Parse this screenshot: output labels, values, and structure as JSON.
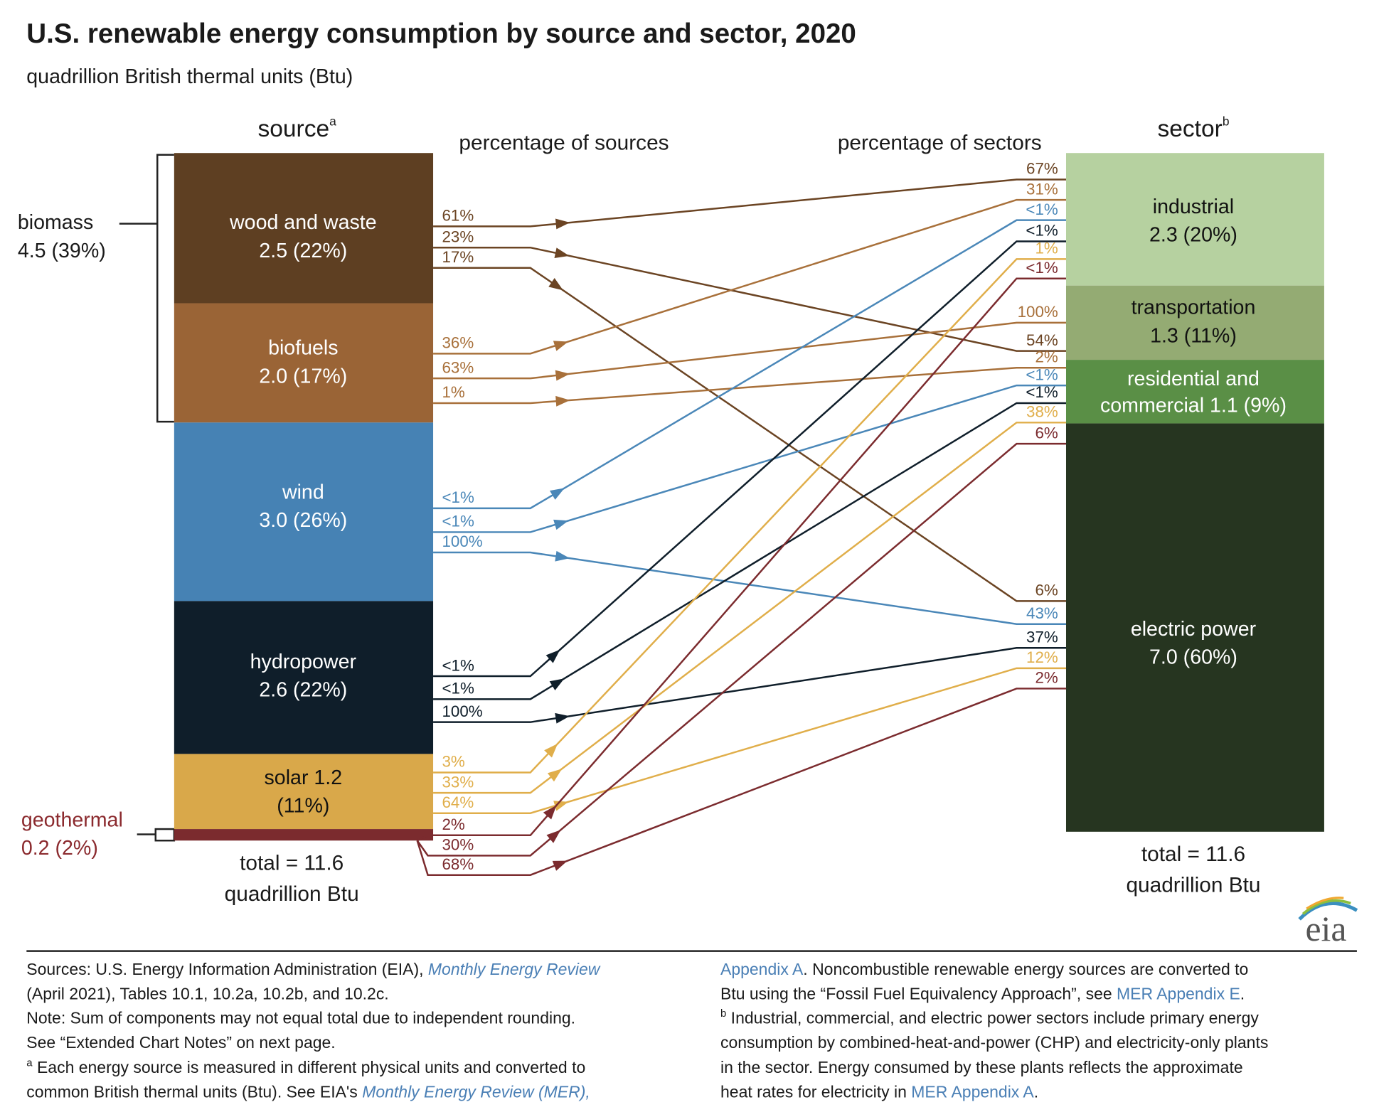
{
  "title": "U.S. renewable energy consumption by source and sector, 2020",
  "subtitle": "quadrillion British thermal units (Btu)",
  "source_header": {
    "text": "source",
    "sup": "a"
  },
  "sector_header": {
    "text": "sector",
    "sup": "b"
  },
  "pct_sources_header": "percentage of sources",
  "pct_sectors_header": "percentage of sectors",
  "biomass": [
    "biomass",
    "4.5 (39%)"
  ],
  "sources": [
    [
      "wood and waste",
      "2.5 (22%)"
    ],
    [
      "biofuels",
      "2.0 (17%)"
    ],
    [
      "wind",
      "3.0 (26%)"
    ],
    [
      "hydropower",
      "2.6 (22%)"
    ],
    [
      "solar 1.2",
      "(11%)"
    ],
    [
      "geothermal",
      "0.2 (2%)"
    ]
  ],
  "sectors": [
    [
      "industrial",
      "2.3 (20%)"
    ],
    [
      "transportation",
      "1.3  (11%)"
    ],
    [
      "residential and",
      "commercial 1.1 (9%)"
    ],
    [
      "electric power",
      "7.0  (60%)"
    ]
  ],
  "flows": [
    {
      "source_pct": "61%",
      "sector_pct": "67%"
    },
    {
      "source_pct": "23%",
      "sector_pct": "54%"
    },
    {
      "source_pct": "17%",
      "sector_pct": "6%"
    },
    {
      "source_pct": "36%",
      "sector_pct": "31%"
    },
    {
      "source_pct": "63%",
      "sector_pct": "100%"
    },
    {
      "source_pct": "1%",
      "sector_pct": "2%"
    },
    {
      "source_pct": "<1%",
      "sector_pct": "<1%"
    },
    {
      "source_pct": "<1%",
      "sector_pct": "<1%"
    },
    {
      "source_pct": "100%",
      "sector_pct": "43%"
    },
    {
      "source_pct": "<1%",
      "sector_pct": "<1%"
    },
    {
      "source_pct": "<1%",
      "sector_pct": "<1%"
    },
    {
      "source_pct": "100%",
      "sector_pct": "37%"
    },
    {
      "source_pct": "3%",
      "sector_pct": "1%"
    },
    {
      "source_pct": "33%",
      "sector_pct": "38%"
    },
    {
      "source_pct": "64%",
      "sector_pct": "12%"
    },
    {
      "source_pct": "2%",
      "sector_pct": "<1%"
    },
    {
      "source_pct": "30%",
      "sector_pct": "6%"
    },
    {
      "source_pct": "68%",
      "sector_pct": "2%"
    }
  ],
  "source_total": [
    "total = 11.6",
    "quadrillion Btu"
  ],
  "sector_total": [
    "total = 11.6",
    "quadrillion Btu"
  ],
  "logo": "eia",
  "footnotes": {
    "left": [
      [
        "Sources: U.S. Energy Information Administration (EIA), ",
        "Monthly Energy Review"
      ],
      [
        "(April 2021), Tables 10.1, 10.2a, 10.2b, and 10.2c."
      ],
      [
        "Note: Sum of components may not equal total due to independent rounding."
      ],
      [
        "See “Extended Chart Notes” on next page."
      ],
      [
        "a",
        " Each energy source is measured in different physical units and converted to"
      ],
      [
        "common British thermal units (Btu). See EIA's ",
        "Monthly Energy Review (MER),"
      ]
    ],
    "right": [
      [
        "Appendix A",
        ". Noncombustible renewable energy sources are converted to"
      ],
      [
        "Btu using the “Fossil Fuel Equivalency Approach”, see ",
        "MER Appendix E",
        "."
      ],
      [
        "b",
        " Industrial, commercial, and electric power sectors include primary energy"
      ],
      [
        "consumption by combined-heat-and-power (CHP) and electricity-only plants"
      ],
      [
        "in the sector. Energy consumed by these plants reflects the approximate"
      ],
      [
        "heat rates for electricity in ",
        "MER Appendix A",
        "."
      ]
    ]
  }
}
